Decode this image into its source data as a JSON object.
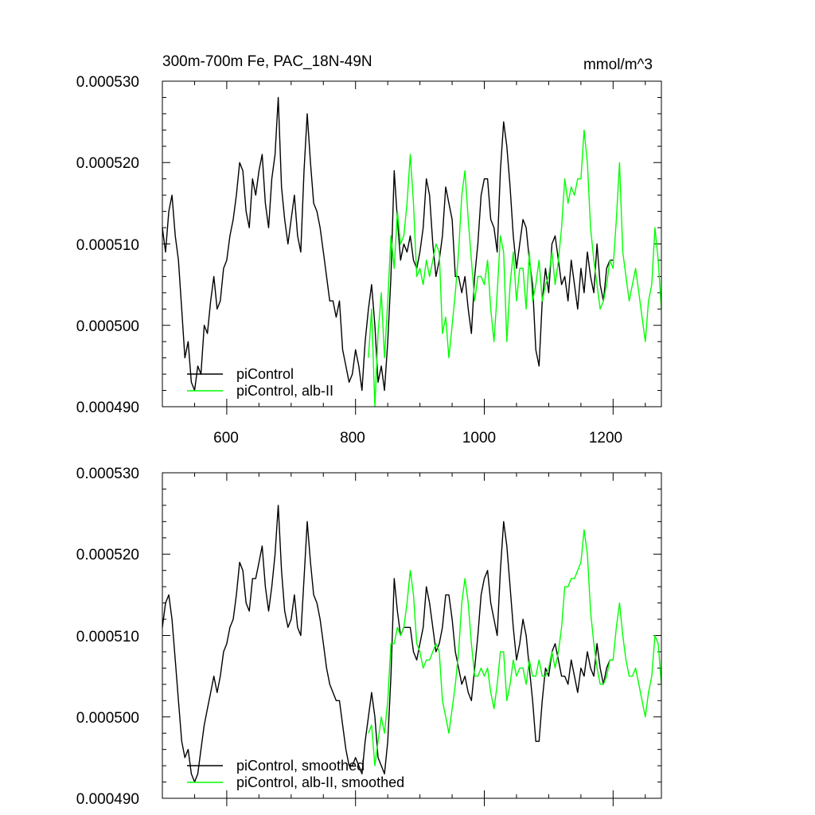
{
  "chart_data": [
    {
      "type": "line",
      "title": "300m-700m Fe, PAC_18N-49N",
      "units": "mmol/m^3",
      "xlim": [
        500,
        1275
      ],
      "ylim": [
        0.00049,
        0.00053
      ],
      "yticks": [
        "0.000490",
        "0.000500",
        "0.000510",
        "0.000520",
        "0.000530"
      ],
      "xticks": [
        "600",
        "800",
        "1000",
        "1200"
      ],
      "legend_position": "bottom-left",
      "series": [
        {
          "name": "piControl",
          "color": "#000000",
          "x": [
            500,
            505,
            510,
            515,
            520,
            525,
            530,
            535,
            540,
            545,
            550,
            555,
            560,
            565,
            570,
            575,
            580,
            585,
            590,
            595,
            600,
            605,
            610,
            615,
            620,
            625,
            630,
            635,
            640,
            645,
            650,
            655,
            660,
            665,
            670,
            675,
            680,
            685,
            690,
            695,
            700,
            705,
            710,
            715,
            720,
            725,
            730,
            735,
            740,
            745,
            750,
            755,
            760,
            765,
            770,
            775,
            780,
            785,
            790,
            795,
            800,
            805,
            810,
            815,
            820,
            825,
            830,
            835,
            840,
            845,
            850,
            855,
            860,
            865,
            870,
            875,
            880,
            885,
            890,
            895,
            900,
            905,
            910,
            915,
            920,
            925,
            930,
            935,
            940,
            945,
            950,
            955,
            960,
            965,
            970,
            975,
            980,
            985,
            990,
            995,
            1000,
            1005,
            1010,
            1015,
            1020,
            1025,
            1030,
            1035,
            1040,
            1045,
            1050,
            1055,
            1060,
            1065,
            1070,
            1075,
            1080,
            1085,
            1090,
            1095,
            1100,
            1105,
            1110,
            1115,
            1120,
            1125,
            1130,
            1135,
            1140,
            1145,
            1150,
            1155,
            1160,
            1165,
            1170,
            1175,
            1180,
            1185,
            1190,
            1195,
            1200
          ],
          "values": [
            0.000512,
            0.000509,
            0.000514,
            0.000516,
            0.000511,
            0.000508,
            0.000502,
            0.000496,
            0.000498,
            0.000493,
            0.000492,
            0.000495,
            0.000494,
            0.0005,
            0.000499,
            0.000503,
            0.000506,
            0.000502,
            0.000503,
            0.000507,
            0.000508,
            0.000511,
            0.000513,
            0.000516,
            0.00052,
            0.000519,
            0.000514,
            0.000512,
            0.000518,
            0.000516,
            0.000519,
            0.000521,
            0.000515,
            0.000512,
            0.000518,
            0.000521,
            0.000528,
            0.000517,
            0.000513,
            0.00051,
            0.000513,
            0.000516,
            0.000511,
            0.000509,
            0.000519,
            0.000526,
            0.00052,
            0.000515,
            0.000514,
            0.000512,
            0.000509,
            0.000506,
            0.000503,
            0.000503,
            0.000501,
            0.000503,
            0.000497,
            0.000495,
            0.000493,
            0.000494,
            0.000497,
            0.000495,
            0.000492,
            0.000498,
            0.000502,
            0.000505,
            0.0005,
            0.000493,
            0.000495,
            0.000492,
            0.000498,
            0.000506,
            0.000519,
            0.000513,
            0.000508,
            0.00051,
            0.000509,
            0.000511,
            0.000508,
            0.000507,
            0.000509,
            0.000512,
            0.000518,
            0.000516,
            0.00051,
            0.000506,
            0.000508,
            0.000511,
            0.000517,
            0.000515,
            0.000513,
            0.000506,
            0.000506,
            0.000504,
            0.000506,
            0.000502,
            0.000499,
            0.000506,
            0.00051,
            0.000516,
            0.000518,
            0.000518,
            0.000513,
            0.000512,
            0.000509,
            0.000519,
            0.000525,
            0.000522,
            0.000517,
            0.000511,
            0.000507,
            0.00051,
            0.000513,
            0.000512,
            0.000508,
            0.000505,
            0.000497,
            0.000495,
            0.000503,
            0.000507,
            0.000504,
            0.00051,
            0.000511,
            0.000508,
            0.000505,
            0.000506,
            0.000503,
            0.000508,
            0.000505,
            0.000502,
            0.000507,
            0.000504,
            0.000509,
            0.000506,
            0.000504,
            0.00051,
            0.000505,
            0.000503,
            0.000507,
            0.000508,
            0.000508
          ]
        },
        {
          "name": "piControl, alb-II",
          "color": "#00ff00",
          "x": [
            820,
            825,
            830,
            835,
            840,
            845,
            850,
            855,
            860,
            865,
            870,
            875,
            880,
            885,
            890,
            895,
            900,
            905,
            910,
            915,
            920,
            925,
            930,
            935,
            940,
            945,
            950,
            955,
            960,
            965,
            970,
            975,
            980,
            985,
            990,
            995,
            1000,
            1005,
            1010,
            1015,
            1020,
            1025,
            1030,
            1035,
            1040,
            1045,
            1050,
            1055,
            1060,
            1065,
            1070,
            1075,
            1080,
            1085,
            1090,
            1095,
            1100,
            1105,
            1110,
            1115,
            1120,
            1125,
            1130,
            1135,
            1140,
            1145,
            1150,
            1155,
            1160,
            1165,
            1170,
            1175,
            1180,
            1185,
            1190,
            1195,
            1200,
            1205,
            1210,
            1215,
            1220,
            1225,
            1230,
            1235,
            1240,
            1245,
            1250,
            1255,
            1260,
            1265,
            1270,
            1275
          ],
          "values": [
            0.000496,
            0.000502,
            0.00049,
            0.000499,
            0.000504,
            0.000496,
            0.000503,
            0.000511,
            0.000507,
            0.000514,
            0.00051,
            0.000511,
            0.000515,
            0.000521,
            0.000515,
            0.000506,
            0.000507,
            0.000505,
            0.000508,
            0.000506,
            0.000508,
            0.00051,
            0.000509,
            0.000499,
            0.000501,
            0.000496,
            0.0005,
            0.000504,
            0.000509,
            0.000516,
            0.000519,
            0.000513,
            0.000508,
            0.000503,
            0.000506,
            0.000506,
            0.000505,
            0.000508,
            0.000502,
            0.000498,
            0.000504,
            0.000511,
            0.000509,
            0.000498,
            0.000505,
            0.000509,
            0.000503,
            0.000507,
            0.000507,
            0.000502,
            0.000509,
            0.000503,
            0.000505,
            0.000508,
            0.000503,
            0.000505,
            0.000506,
            0.000509,
            0.000505,
            0.000508,
            0.000512,
            0.000518,
            0.000515,
            0.000517,
            0.000516,
            0.000518,
            0.000518,
            0.000524,
            0.00052,
            0.000512,
            0.000508,
            0.000505,
            0.000502,
            0.000503,
            0.000505,
            0.000508,
            0.000507,
            0.000513,
            0.00052,
            0.000509,
            0.000506,
            0.000503,
            0.000505,
            0.000507,
            0.000504,
            0.000501,
            0.000498,
            0.000503,
            0.000505,
            0.000512,
            0.000508,
            0.000502
          ]
        }
      ]
    },
    {
      "type": "line",
      "xlim": [
        500,
        1275
      ],
      "ylim": [
        0.00049,
        0.00053
      ],
      "yticks": [
        "0.000490",
        "0.000500",
        "0.000510",
        "0.000520",
        "0.000530"
      ],
      "legend_position": "bottom-left",
      "series": [
        {
          "name": "piControl, smoothed",
          "color": "#000000",
          "x": [
            500,
            505,
            510,
            515,
            520,
            525,
            530,
            535,
            540,
            545,
            550,
            555,
            560,
            565,
            570,
            575,
            580,
            585,
            590,
            595,
            600,
            605,
            610,
            615,
            620,
            625,
            630,
            635,
            640,
            645,
            650,
            655,
            660,
            665,
            670,
            675,
            680,
            685,
            690,
            695,
            700,
            705,
            710,
            715,
            720,
            725,
            730,
            735,
            740,
            745,
            750,
            755,
            760,
            765,
            770,
            775,
            780,
            785,
            790,
            795,
            800,
            805,
            810,
            815,
            820,
            825,
            830,
            835,
            840,
            845,
            850,
            855,
            860,
            865,
            870,
            875,
            880,
            885,
            890,
            895,
            900,
            905,
            910,
            915,
            920,
            925,
            930,
            935,
            940,
            945,
            950,
            955,
            960,
            965,
            970,
            975,
            980,
            985,
            990,
            995,
            1000,
            1005,
            1010,
            1015,
            1020,
            1025,
            1030,
            1035,
            1040,
            1045,
            1050,
            1055,
            1060,
            1065,
            1070,
            1075,
            1080,
            1085,
            1090,
            1095,
            1100,
            1105,
            1110,
            1115,
            1120,
            1125,
            1130,
            1135,
            1140,
            1145,
            1150,
            1155,
            1160,
            1165,
            1170,
            1175,
            1180,
            1185,
            1190,
            1195,
            1200
          ],
          "values": [
            0.000511,
            0.000514,
            0.000515,
            0.000512,
            0.000507,
            0.000502,
            0.000497,
            0.000495,
            0.000496,
            0.000493,
            0.000492,
            0.000493,
            0.000496,
            0.000499,
            0.000501,
            0.000503,
            0.000505,
            0.000503,
            0.000505,
            0.000508,
            0.000509,
            0.000511,
            0.000512,
            0.000515,
            0.000519,
            0.000518,
            0.000514,
            0.000513,
            0.000517,
            0.000517,
            0.000519,
            0.000521,
            0.000516,
            0.000513,
            0.000516,
            0.00052,
            0.000526,
            0.000518,
            0.000513,
            0.000511,
            0.000512,
            0.000515,
            0.000511,
            0.00051,
            0.000517,
            0.000524,
            0.000519,
            0.000515,
            0.000514,
            0.000512,
            0.000509,
            0.000506,
            0.000504,
            0.000503,
            0.000502,
            0.000502,
            0.000499,
            0.000496,
            0.000494,
            0.000494,
            0.000495,
            0.000494,
            0.000493,
            0.000497,
            0.0005,
            0.000503,
            0.0005,
            0.000495,
            0.000494,
            0.000493,
            0.000497,
            0.000505,
            0.000517,
            0.000513,
            0.00051,
            0.000511,
            0.000511,
            0.000511,
            0.000508,
            0.000507,
            0.000509,
            0.000511,
            0.000516,
            0.000514,
            0.000511,
            0.000508,
            0.000509,
            0.000511,
            0.000515,
            0.000515,
            0.000512,
            0.000508,
            0.000506,
            0.000504,
            0.000505,
            0.000503,
            0.000502,
            0.000506,
            0.00051,
            0.000515,
            0.000517,
            0.000518,
            0.000514,
            0.000512,
            0.00051,
            0.000518,
            0.000524,
            0.000521,
            0.000516,
            0.000511,
            0.000507,
            0.000509,
            0.000512,
            0.00051,
            0.000506,
            0.000502,
            0.000497,
            0.000497,
            0.000502,
            0.000506,
            0.000505,
            0.000508,
            0.000509,
            0.000507,
            0.000505,
            0.000505,
            0.000504,
            0.000507,
            0.000505,
            0.000503,
            0.000506,
            0.000505,
            0.000508,
            0.000506,
            0.000505,
            0.000509,
            0.000506,
            0.000504,
            0.000506,
            0.000507,
            0.000507
          ]
        },
        {
          "name": "piControl, alb-II, smoothed",
          "color": "#00ff00",
          "x": [
            820,
            825,
            830,
            835,
            840,
            845,
            850,
            855,
            860,
            865,
            870,
            875,
            880,
            885,
            890,
            895,
            900,
            905,
            910,
            915,
            920,
            925,
            930,
            935,
            940,
            945,
            950,
            955,
            960,
            965,
            970,
            975,
            980,
            985,
            990,
            995,
            1000,
            1005,
            1010,
            1015,
            1020,
            1025,
            1030,
            1035,
            1040,
            1045,
            1050,
            1055,
            1060,
            1065,
            1070,
            1075,
            1080,
            1085,
            1090,
            1095,
            1100,
            1105,
            1110,
            1115,
            1120,
            1125,
            1130,
            1135,
            1140,
            1145,
            1150,
            1155,
            1160,
            1165,
            1170,
            1175,
            1180,
            1185,
            1190,
            1195,
            1200,
            1205,
            1210,
            1215,
            1220,
            1225,
            1230,
            1235,
            1240,
            1245,
            1250,
            1255,
            1260,
            1265,
            1270,
            1275
          ],
          "values": [
            0.000498,
            0.000499,
            0.000494,
            0.000497,
            0.0005,
            0.000498,
            0.000502,
            0.000509,
            0.000509,
            0.000511,
            0.00051,
            0.000511,
            0.000514,
            0.000518,
            0.000515,
            0.000509,
            0.000508,
            0.000506,
            0.000507,
            0.000507,
            0.000508,
            0.000509,
            0.000508,
            0.000502,
            0.0005,
            0.000498,
            0.000501,
            0.000504,
            0.000508,
            0.000514,
            0.000517,
            0.000514,
            0.000509,
            0.000505,
            0.000505,
            0.000506,
            0.000505,
            0.000506,
            0.000503,
            0.000501,
            0.000504,
            0.000508,
            0.000508,
            0.000502,
            0.000504,
            0.000507,
            0.000505,
            0.000506,
            0.000506,
            0.000504,
            0.000507,
            0.000505,
            0.000505,
            0.000507,
            0.000505,
            0.000505,
            0.000506,
            0.000508,
            0.000506,
            0.000508,
            0.000511,
            0.000516,
            0.000516,
            0.000517,
            0.000517,
            0.000518,
            0.000519,
            0.000523,
            0.00052,
            0.000513,
            0.000509,
            0.000506,
            0.000504,
            0.000504,
            0.000505,
            0.000507,
            0.000507,
            0.000511,
            0.000514,
            0.00051,
            0.000507,
            0.000505,
            0.000505,
            0.000506,
            0.000504,
            0.000502,
            0.0005,
            0.000503,
            0.000505,
            0.00051,
            0.000509,
            0.000504
          ]
        }
      ]
    }
  ]
}
